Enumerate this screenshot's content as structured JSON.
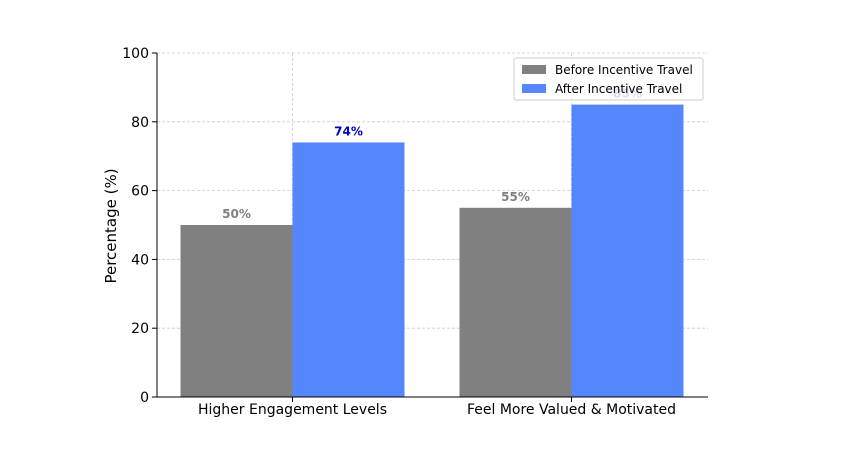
{
  "chart_data": {
    "type": "bar",
    "categories": [
      "Higher Engagement Levels",
      "Feel More Valued & Motivated"
    ],
    "series": [
      {
        "name": "Before Incentive Travel",
        "values": [
          50,
          55
        ],
        "color": "#808080",
        "label_color": "#808080"
      },
      {
        "name": "After Incentive Travel",
        "values": [
          74,
          85
        ],
        "color": "#5686fb",
        "label_color": "#0000cc"
      }
    ],
    "data_labels": [
      [
        "50%",
        "55%"
      ],
      [
        "74%",
        "85%"
      ]
    ],
    "title": "",
    "xlabel": "",
    "ylabel": "Percentage (%)",
    "ylim": [
      0,
      100
    ],
    "yticks": [
      0,
      20,
      40,
      60,
      80,
      100
    ],
    "grid": true,
    "legend_position": "top-right"
  }
}
